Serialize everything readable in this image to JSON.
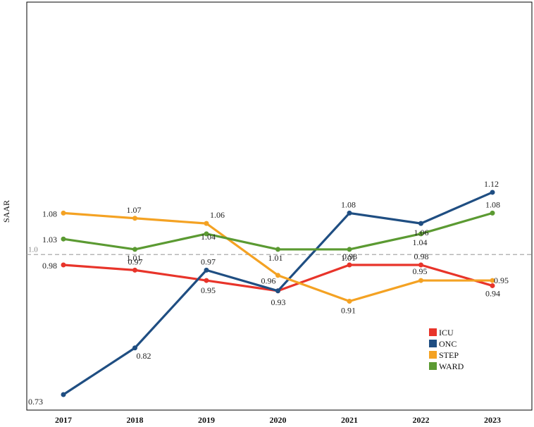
{
  "chart_data": {
    "type": "line",
    "title": "",
    "xlabel": "",
    "ylabel": "SAAR",
    "categories": [
      "2017",
      "2018",
      "2019",
      "2020",
      "2021",
      "2022",
      "2023"
    ],
    "ylim": [
      0.7,
      1.14
    ],
    "reference_line": {
      "value": 1.0,
      "label": "1.0",
      "color": "#aaaaaa"
    },
    "legend_position": "lower-right",
    "series": [
      {
        "name": "ICU",
        "color": "#e8342a",
        "values": [
          0.98,
          0.97,
          0.95,
          0.93,
          0.98,
          0.98,
          0.94
        ],
        "labels": [
          "0.98",
          "0.97",
          "0.95",
          "",
          "0.98",
          "0.98",
          "0.94"
        ]
      },
      {
        "name": "ONC",
        "color": "#1f4e82",
        "values": [
          0.73,
          0.82,
          0.97,
          0.93,
          1.08,
          1.06,
          1.12
        ],
        "labels": [
          "0.73",
          "0.82",
          "0.97",
          "0.93",
          "1.08",
          "1.06",
          "1.12"
        ]
      },
      {
        "name": "STEP",
        "color": "#f4a223",
        "values": [
          1.08,
          1.07,
          1.06,
          0.96,
          0.91,
          0.95,
          0.95
        ],
        "labels": [
          "1.08",
          "1.07",
          "1.06",
          "0.96",
          "0.91",
          "0.95",
          "0.95"
        ]
      },
      {
        "name": "WARD",
        "color": "#5b9a32",
        "values": [
          1.03,
          1.01,
          1.04,
          1.01,
          1.01,
          1.04,
          1.08
        ],
        "labels": [
          "1.03",
          "1.01",
          "1.04",
          "1.01",
          "1.01",
          "1.04",
          "1.08"
        ]
      }
    ]
  }
}
